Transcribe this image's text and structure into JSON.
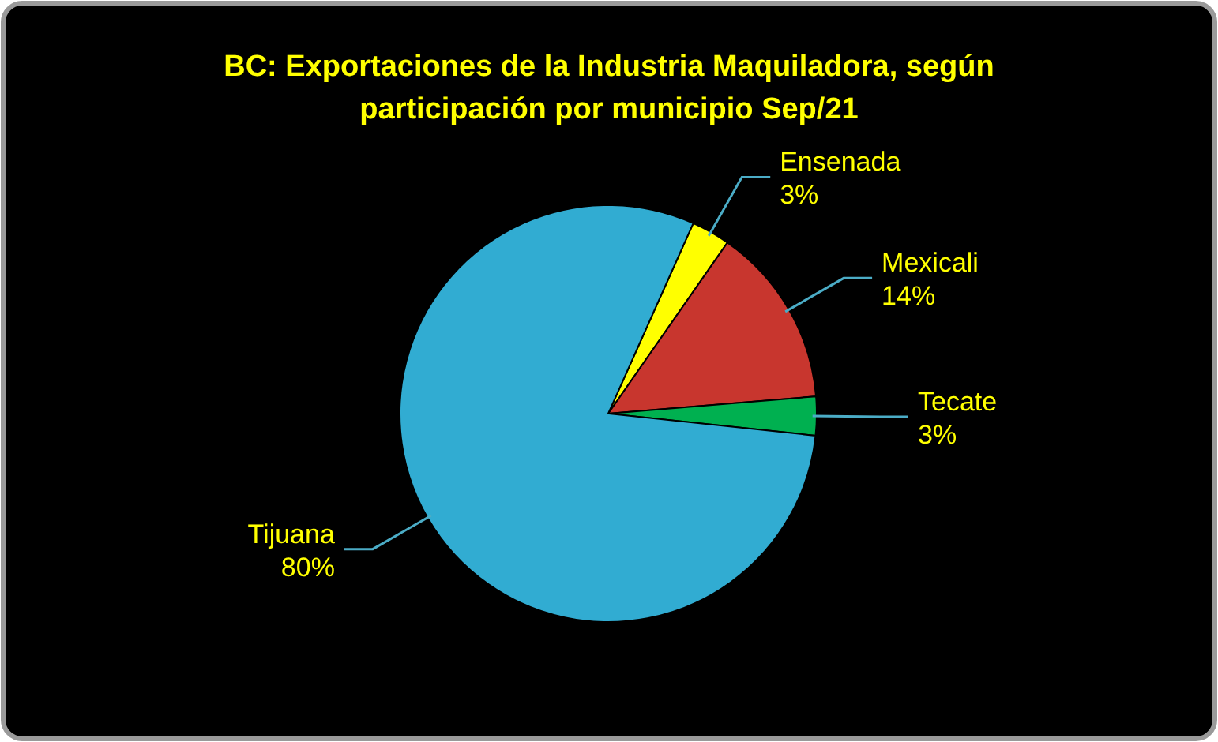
{
  "chart_data": {
    "type": "pie",
    "title": "BC: Exportaciones de la Industria Maquiladora, según participación por municipio Sep/21",
    "categories": [
      "Ensenada",
      "Mexicali",
      "Tecate",
      "Tijuana"
    ],
    "values": [
      3,
      14,
      3,
      80
    ],
    "colors": [
      "#ffff00",
      "#c8362e",
      "#00b050",
      "#31acd2"
    ],
    "value_labels": [
      "3%",
      "14%",
      "3%",
      "80%"
    ]
  }
}
